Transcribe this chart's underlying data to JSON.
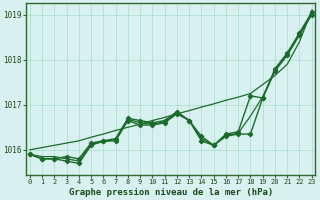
{
  "background_color": "#d9f0f0",
  "grid_color": "#aaddcc",
  "line_color": "#1a6b2a",
  "title": "Graphe pression niveau de la mer (hPa)",
  "xlabel_ticks": [
    0,
    1,
    2,
    3,
    4,
    5,
    6,
    7,
    8,
    9,
    10,
    11,
    12,
    13,
    14,
    15,
    16,
    17,
    18,
    19,
    20,
    21,
    22,
    23
  ],
  "ylim": [
    1015.45,
    1019.25
  ],
  "yticks": [
    1016,
    1017,
    1018,
    1019
  ],
  "series": [
    {
      "y": [
        1015.9,
        1015.8,
        1015.8,
        1015.85,
        1015.8,
        1016.15,
        1016.2,
        1016.25,
        1016.7,
        1016.65,
        1016.6,
        1016.65,
        1016.85,
        1016.65,
        1016.3,
        1016.1,
        1016.35,
        1016.4,
        1017.2,
        1017.15,
        1017.8,
        1018.15,
        1018.6,
        1019.05
      ],
      "marker": true,
      "linewidth": 1.0
    },
    {
      "y": [
        1015.9,
        1015.8,
        1015.8,
        1015.75,
        1015.7,
        1016.1,
        1016.2,
        1016.2,
        1016.65,
        1016.55,
        1016.55,
        1016.6,
        1016.8,
        1016.65,
        1016.2,
        1016.1,
        1016.3,
        1016.35,
        1016.35,
        1017.15,
        1017.75,
        1018.1,
        1018.55,
        1019.0
      ],
      "marker": true,
      "linewidth": 1.0
    },
    {
      "y": [
        1016.0,
        1016.05,
        1016.1,
        1016.15,
        1016.2,
        1016.28,
        1016.35,
        1016.43,
        1016.5,
        1016.57,
        1016.65,
        1016.72,
        1016.8,
        1016.87,
        1016.95,
        1017.02,
        1017.1,
        1017.17,
        1017.25,
        1017.45,
        1017.65,
        1017.9,
        1018.4,
        1019.1
      ],
      "marker": false,
      "linewidth": 0.9
    },
    {
      "y": [
        1015.9,
        1015.85,
        1015.85,
        1015.8,
        1015.75,
        1016.12,
        1016.18,
        1016.22,
        1016.68,
        1016.6,
        1016.57,
        1016.62,
        1016.82,
        1016.66,
        1016.25,
        1016.1,
        1016.32,
        1016.37,
        1016.75,
        1017.18,
        1017.77,
        1018.12,
        1018.57,
        1019.02
      ],
      "marker": false,
      "linewidth": 0.9
    }
  ]
}
